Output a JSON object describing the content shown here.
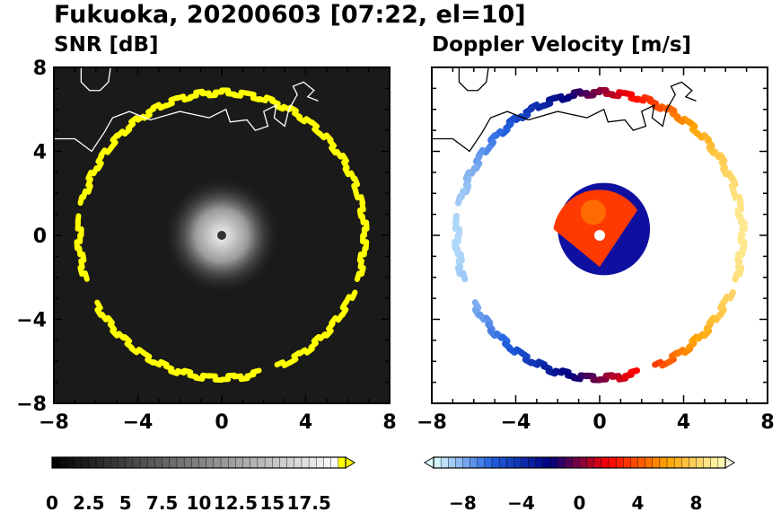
{
  "figure": {
    "title": "Fukuoka, 20200603 [07:22, el=10]"
  },
  "chart_data": [
    {
      "type": "heatmap",
      "title": "SNR [dB]",
      "xlim": [
        -8,
        8
      ],
      "ylim": [
        -8,
        8
      ],
      "xticks": [
        -8,
        -4,
        0,
        4,
        8
      ],
      "yticks": [
        -8,
        -4,
        0,
        4,
        8
      ],
      "xtick_labels": [
        "−8",
        "−4",
        "0",
        "4",
        "8"
      ],
      "ytick_labels": [
        "−8",
        "−4",
        "0",
        "4",
        "8"
      ],
      "background_color": "#1a1a1a",
      "feature_color": "#ffff00",
      "ring_radius": 6.8,
      "colorbar": {
        "min": 0,
        "max": 20,
        "levels": 40,
        "tick_values": [
          0,
          2.5,
          5,
          7.5,
          10,
          12.5,
          15,
          17.5
        ],
        "tick_labels": [
          "0",
          "2.5",
          "5",
          "7.5",
          "10",
          "12.5",
          "15",
          "17.5"
        ],
        "colors": [
          "#000000",
          "#ffffff",
          "#ffff00"
        ]
      }
    },
    {
      "type": "heatmap",
      "title": "Doppler Velocity [m/s]",
      "xlim": [
        -8,
        8
      ],
      "ylim": [
        -8,
        8
      ],
      "xticks": [
        -8,
        -4,
        0,
        4,
        8
      ],
      "yticks": [
        -8,
        -4,
        0,
        4,
        8
      ],
      "xtick_labels": [
        "−8",
        "−4",
        "0",
        "4",
        "8"
      ],
      "ytick_labels": [
        "−8",
        "−4",
        "0",
        "4",
        "8"
      ],
      "ring_radius": 6.8,
      "colorbar": {
        "min": -10,
        "max": 10,
        "tick_values": [
          -8,
          -4,
          0,
          4,
          8
        ],
        "tick_labels": [
          "−8",
          "−4",
          "0",
          "4",
          "8"
        ],
        "colors": [
          "#e0ffff",
          "#2060e0",
          "#000080",
          "#ff0000",
          "#ffa500",
          "#ffffc0"
        ]
      }
    }
  ]
}
